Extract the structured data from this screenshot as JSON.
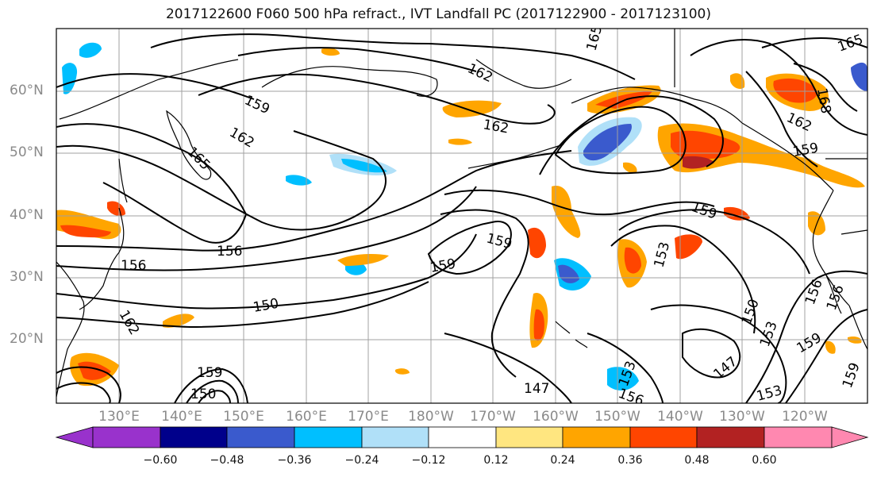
{
  "title": "2017122600 F060 500 hPa refract., IVT Landfall PC (2017122900 - 2017123100)",
  "lat_labels": [
    "60°N",
    "50°N",
    "40°N",
    "30°N",
    "20°N"
  ],
  "lon_labels": [
    "130°E",
    "140°E",
    "150°E",
    "160°E",
    "170°E",
    "180°W",
    "170°W",
    "160°W",
    "150°W",
    "140°W",
    "130°W",
    "120°W"
  ],
  "contour_labels": [
    "165",
    "162",
    "159",
    "162",
    "165",
    "156",
    "162",
    "159",
    "159",
    "156",
    "150",
    "147",
    "153",
    "159",
    "150",
    "156",
    "159",
    "147",
    "153",
    "162",
    "159",
    "165",
    "168",
    "162",
    "159",
    "153",
    "150",
    "156",
    "159",
    "153",
    "156"
  ],
  "colorbar": {
    "ticks": [
      "−0.60",
      "−0.48",
      "−0.36",
      "−0.24",
      "−0.12",
      "0.12",
      "0.24",
      "0.36",
      "0.48",
      "0.60"
    ],
    "colors": [
      "#9932cc",
      "#00008b",
      "#3a5acd",
      "#00bfff",
      "#b0e0f8",
      "#ffffff",
      "#ffe680",
      "#ffa500",
      "#ff4500",
      "#b22222",
      "#ff88b0"
    ]
  },
  "colors": {
    "grid": "#a0a0a0",
    "contour": "#000000",
    "coast": "#000000",
    "axis_text": "#8a8a8a"
  }
}
